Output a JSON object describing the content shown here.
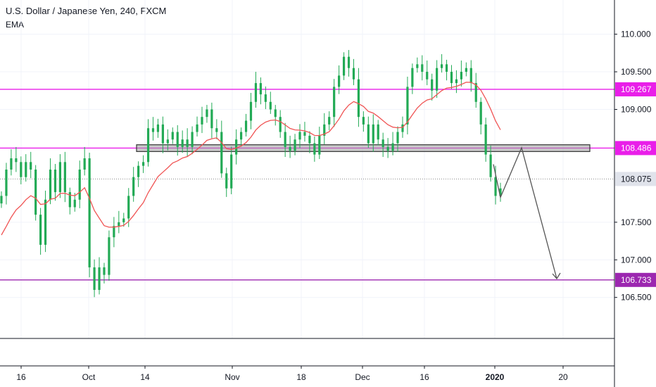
{
  "header": {
    "title": "U.S. Dollar / Japanese Yen, 240, FXCM",
    "indicator": "EMA"
  },
  "colors": {
    "level_lines": "#e91ee9",
    "target_line": "#9c27b0",
    "ema": "#f05454",
    "candle": "#22aa55",
    "zone_fill": "#9e9e9e",
    "zone_border": "#333333",
    "arrow": "#555555"
  },
  "chart_data": {
    "type": "candlestick",
    "title": "U.S. Dollar / Japanese Yen, 240, FXCM",
    "y_ticks": [
      110.0,
      109.5,
      109.0,
      107.5,
      107.0,
      106.5
    ],
    "y_tick_labels": [
      "110.000",
      "109.500",
      "109.000",
      "107.500",
      "107.000",
      "106.500"
    ],
    "ylim": [
      105.95,
      110.45
    ],
    "x_ticks": [
      "16",
      "Oct",
      "14",
      "Nov",
      "18",
      "Dec",
      "16",
      "2020",
      "20"
    ],
    "grid": true,
    "levels": [
      {
        "label": "109.267",
        "value": 109.267,
        "style": "level"
      },
      {
        "label": "108.486",
        "value": 108.486,
        "style": "level"
      },
      {
        "label": "106.733",
        "value": 106.733,
        "style": "target"
      }
    ],
    "current_price": {
      "label": "108.075",
      "value": 108.075
    },
    "support_zone": {
      "low": 108.44,
      "high": 108.53
    },
    "projection_path": [
      108.27,
      107.83,
      108.49,
      106.75
    ],
    "closes": [
      107.85,
      108.2,
      108.35,
      108.3,
      108.1,
      108.3,
      108.2,
      107.6,
      107.2,
      107.8,
      108.2,
      107.9,
      108.3,
      107.9,
      107.7,
      107.8,
      108.2,
      108.35,
      106.9,
      106.6,
      106.9,
      106.8,
      107.3,
      107.45,
      107.5,
      107.55,
      107.85,
      108.1,
      108.25,
      108.3,
      108.75,
      108.7,
      108.8,
      108.55,
      108.6,
      108.7,
      108.5,
      108.6,
      108.5,
      108.7,
      108.8,
      108.9,
      109.0,
      108.75,
      108.7,
      108.15,
      107.95,
      108.4,
      108.6,
      108.7,
      108.85,
      109.1,
      109.35,
      109.2,
      109.1,
      109.0,
      108.9,
      108.7,
      108.5,
      108.45,
      108.6,
      108.7,
      108.65,
      108.55,
      108.4,
      108.65,
      108.8,
      108.9,
      109.3,
      109.45,
      109.7,
      109.55,
      109.4,
      108.9,
      108.8,
      108.55,
      108.8,
      108.6,
      108.5,
      108.45,
      108.55,
      108.7,
      108.8,
      109.3,
      109.55,
      109.6,
      109.5,
      109.4,
      109.25,
      109.55,
      109.6,
      109.5,
      109.35,
      109.4,
      109.5,
      109.55,
      109.35,
      109.1,
      108.8,
      108.4,
      108.1,
      107.85,
      107.95
    ]
  }
}
